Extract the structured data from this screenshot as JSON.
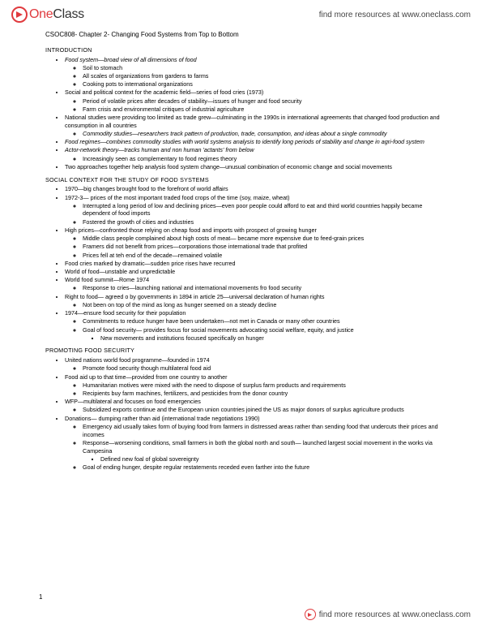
{
  "brand": {
    "one": "One",
    "class": "Class"
  },
  "header_link": "find more resources at www.oneclass.com",
  "footer_link": "find more resources at www.oneclass.com",
  "page_number": "1",
  "title": "CSOC808- Chapter 2- Changing Food Systems from Top to Bottom",
  "s1": {
    "head": "INTRODUCTION",
    "b1": "Food system—broad view of all dimensions of food",
    "b1a": "Soil to stomach",
    "b1b": "All scales of organizations from gardens to farms",
    "b1c": "Cooking pots to international organizations",
    "b2": "Social and political context for the academic field—series of food cries (1973)",
    "b2a": "Period of volatile prices after decades of stability—issues of hunger and food security",
    "b2b": "Farm crisis and environmental critiques of industrial agriculture",
    "b3": "National studies were providing too limited as trade grew—culminating in the 1990s in international agreements that changed food production and consumption in all countries",
    "b3a": "Commodity studies—researchers track pattern of production, trade, consumption, and ideas about a single commodity",
    "b4": "Food regimes—combines commodity studies with world systems analysis to identify long periods of stability and change in agri-food system",
    "b5": "Actor-network theory—tracks human and non human 'actants' from below",
    "b5a": "Increasingly seen as complementary to food regimes theory",
    "b6": "Two approaches together help analysis food system change—unusual combination of economic change and social movements"
  },
  "s2": {
    "head": "SOCIAL CONTEXT FOR THE STUDY OF FOOD SYSTEMS",
    "b1": "1970—big changes brought food to the forefront of world affairs",
    "b2": "1972-3— prices of the most important traded food crops of the time (soy, maize, wheat)",
    "b2a": "Interrupted a long period of low and declining prices—even poor people could afford to eat and third world countries happily became dependent of food imports",
    "b2b": "Fostered the growth of cities and industries",
    "b3": "High prices—confronted those relying on cheap food and imports with prospect of growing hunger",
    "b3a": "Middle class people complained about high costs of meat— became more expensive due to feed-grain prices",
    "b3b": "Framers did not benefit from prices—corporations those international trade that profited",
    "b3c": "Prices fell at teh end of the decade—remained volatile",
    "b4": "Food cries marked by dramatic—sudden price rises have recurred",
    "b5": "World of food—unstable and unpredictable",
    "b6": "World food summit—Rome 1974",
    "b6a": "Response to cries—launching national and international movements fro food security",
    "b7": "Right to food— agreed o by governments in 1894 in article 25—universal declaration of human rights",
    "b7a": "Not been on top of the mind as long as hunger seemed on a steady decline",
    "b8": "1974—ensure food security for their population",
    "b8a": "Commitments to reduce hunger have been undertaken—not met in Canada or many other countries",
    "b8b": "Goal of food security— provides focus for social movements advocating social welfare, equity, and justice",
    "b8b1": "New movements and institutions focused specifically on hunger"
  },
  "s3": {
    "head": "PROMOTING FOOD SECURITY",
    "b1": "United nations world food programme—founded in 1974",
    "b1a": "Promote food security though multilateral food aid",
    "b2": "Food aid up to that time—provided from one country to another",
    "b2a": "Humanitarian motives were mixed with the need to dispose of surplus farm products and requirements",
    "b2b": "Recipients buy farm machines, fertilizers, and pesticides from the donor country",
    "b3": "WFP—multilateral and focuses on food emergencies",
    "b3a": "Subsidized exports continue and the European union countries joined the US as major donors of surplus agriculture products",
    "b4": "Donations— dumping rather than aid (international trade negotiations 1990)",
    "b4a": "Emergency aid usually takes form of buying food from farmers in distressed areas rather than sending food that undercuts their prices and incomes",
    "b4b": "Response—worsening conditions, small farmers in both the global north and south— launched largest social movement in the works via Campesina",
    "b4b1": "Defined new foal of global sovereignty",
    "b4c": "Goal of ending hunger, despite regular restatements receded even farther into the future"
  }
}
